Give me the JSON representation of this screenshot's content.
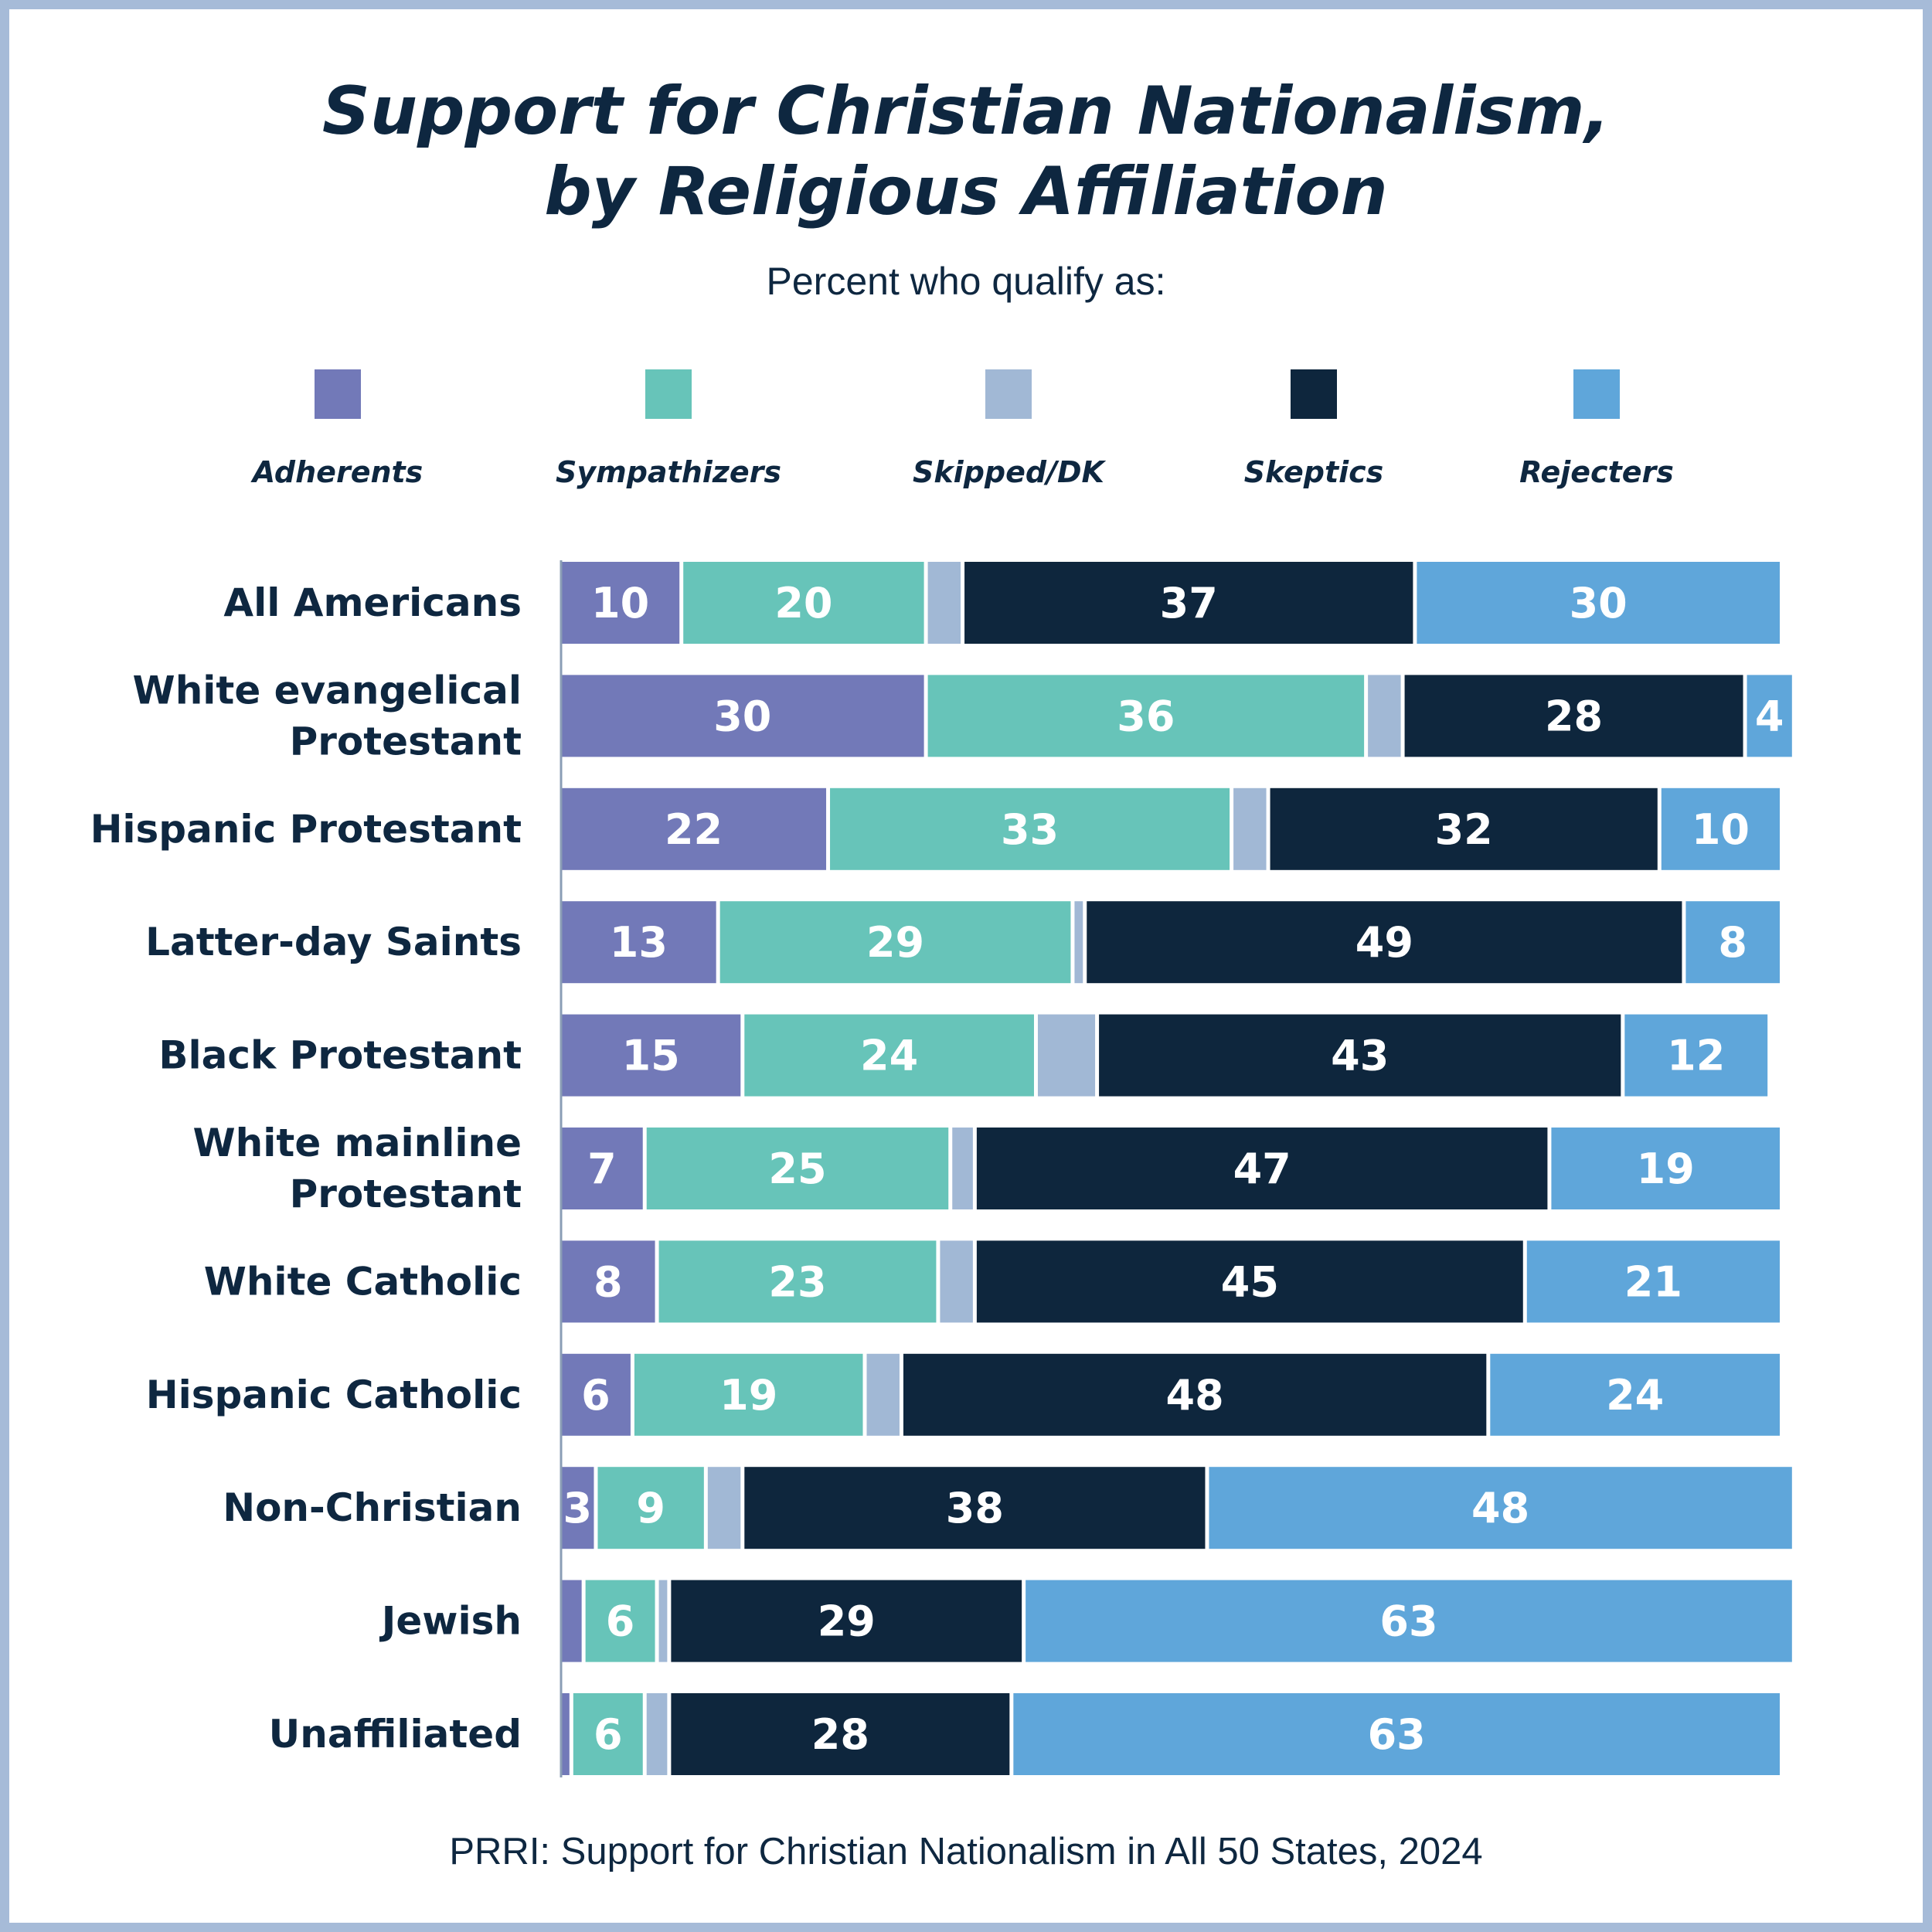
{
  "chart_data": {
    "type": "bar",
    "orientation": "horizontal",
    "stacked": true,
    "title_line1": "Support for Christian Nationalism,",
    "title_line2": "by Religious Affiliation",
    "subtitle": "Percent who qualify as:",
    "source": "PRRI: Support for Christian Nationalism in All 50 States, 2024",
    "xlim": [
      0,
      100
    ],
    "grid": false,
    "legend_position": "top",
    "categories": [
      [
        "All Americans"
      ],
      [
        "White evangelical",
        "Protestant"
      ],
      [
        "Hispanic Protestant"
      ],
      [
        "Latter-day Saints"
      ],
      [
        "Black Protestant"
      ],
      [
        "White mainline",
        "Protestant"
      ],
      [
        "White Catholic"
      ],
      [
        "Hispanic Catholic"
      ],
      [
        "Non-Christian"
      ],
      [
        "Jewish"
      ],
      [
        "Unaffiliated"
      ]
    ],
    "series": [
      {
        "name": "Adherents",
        "color": "#7279b8",
        "values": [
          10,
          30,
          22,
          13,
          15,
          7,
          8,
          6,
          3,
          2,
          1
        ],
        "labels": [
          "10",
          "30",
          "22",
          "13",
          "15",
          "7",
          "8",
          "6",
          "3",
          "",
          ""
        ]
      },
      {
        "name": "Sympathizers",
        "color": "#67c4b9",
        "values": [
          20,
          36,
          33,
          29,
          24,
          25,
          23,
          19,
          9,
          6,
          6
        ],
        "labels": [
          "20",
          "36",
          "33",
          "29",
          "24",
          "25",
          "23",
          "19",
          "9",
          "6",
          "6"
        ]
      },
      {
        "name": "Skipped/DK",
        "color": "#a1b8d5",
        "values": [
          3,
          3,
          3,
          1,
          5,
          2,
          3,
          3,
          3,
          1,
          2
        ],
        "labels": [
          "",
          "",
          "",
          "",
          "",
          "",
          "",
          "",
          "",
          "",
          ""
        ]
      },
      {
        "name": "Skeptics",
        "color": "#0e263d",
        "values": [
          37,
          28,
          32,
          49,
          43,
          47,
          45,
          48,
          38,
          29,
          28
        ],
        "labels": [
          "37",
          "28",
          "32",
          "49",
          "43",
          "47",
          "45",
          "48",
          "38",
          "29",
          "28"
        ]
      },
      {
        "name": "Rejecters",
        "color": "#5fa6da",
        "values": [
          30,
          4,
          10,
          8,
          12,
          19,
          21,
          24,
          48,
          63,
          63
        ],
        "labels": [
          "30",
          "4",
          "10",
          "8",
          "12",
          "19",
          "21",
          "24",
          "48",
          "63",
          "63"
        ]
      }
    ]
  }
}
